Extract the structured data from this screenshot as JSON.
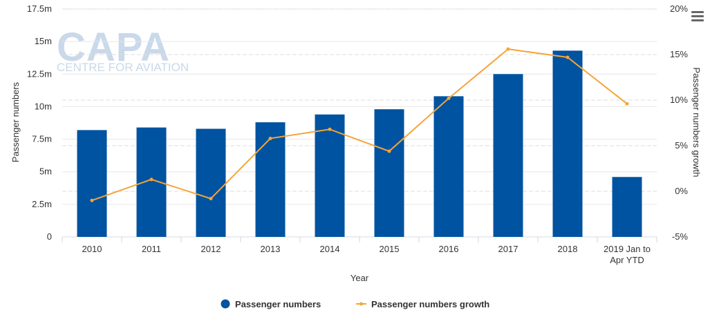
{
  "watermark": {
    "brand": "CAPA",
    "tagline": "CENTRE FOR AVIATION"
  },
  "menu": {
    "icon": "hamburger-menu-icon"
  },
  "legend": {
    "series1_label": "Passenger numbers",
    "series2_label": "Passenger numbers growth"
  },
  "colors": {
    "bar": "#0053a0",
    "line": "#f5a43a",
    "grid": "#e6e6e6"
  },
  "chart_data": {
    "type": "bar",
    "xlabel": "Year",
    "ylabel": "Passenger numbers",
    "y2label": "Passenger numbers growth",
    "categories": [
      "2010",
      "2011",
      "2012",
      "2013",
      "2014",
      "2015",
      "2016",
      "2017",
      "2018",
      [
        "2019 Jan to",
        "Apr YTD"
      ]
    ],
    "ylim": [
      0,
      17.5
    ],
    "y_ticks": [
      "0",
      "2.5m",
      "5m",
      "7.5m",
      "10m",
      "12.5m",
      "15m",
      "17.5m"
    ],
    "y2lim": [
      -5,
      20
    ],
    "y2_ticks": [
      "-5%",
      "0%",
      "5%",
      "10%",
      "15%",
      "20%"
    ],
    "grid": true,
    "legend_position": "bottom-center",
    "series": [
      {
        "name": "Passenger numbers",
        "type": "bar",
        "axis": "left",
        "unit": "million",
        "values": [
          8.2,
          8.4,
          8.3,
          8.8,
          9.4,
          9.8,
          10.8,
          12.5,
          14.3,
          4.6
        ]
      },
      {
        "name": "Passenger numbers growth",
        "type": "line",
        "axis": "right",
        "unit": "percent",
        "values": [
          -1.0,
          1.3,
          -0.8,
          5.8,
          6.8,
          4.4,
          10.2,
          15.6,
          14.7,
          9.6
        ]
      }
    ]
  }
}
